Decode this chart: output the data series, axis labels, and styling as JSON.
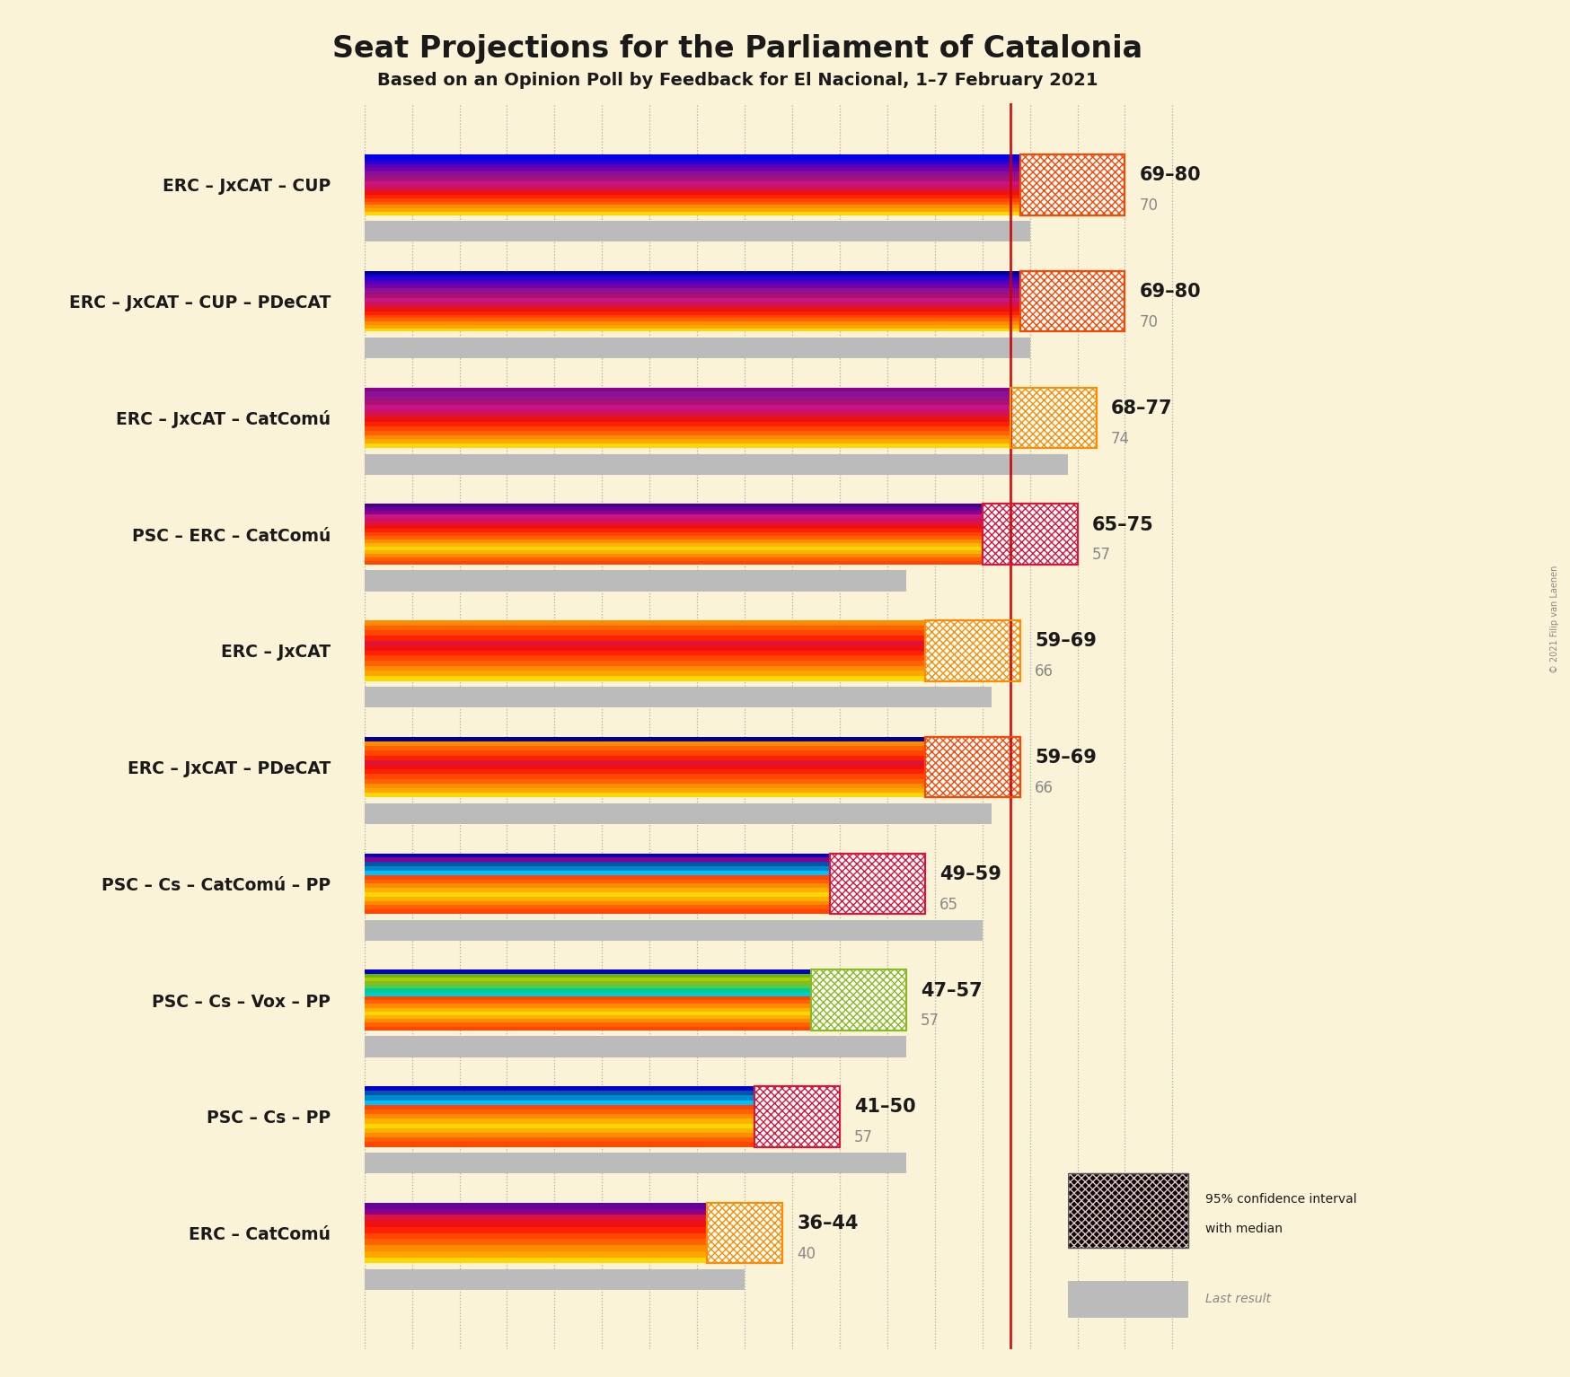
{
  "title": "Seat Projections for the Parliament of Catalonia",
  "subtitle": "Based on an Opinion Poll by Feedback for El Nacional, 1–7 February 2021",
  "copyright": "© 2021 Filip van Laenen",
  "background_color": "#faf3d8",
  "majority_line": 68,
  "coalitions": [
    {
      "label": "ERC – JxCAT – CUP",
      "ci_low": 69,
      "ci_high": 80,
      "median": 70,
      "last_result": 70,
      "stripes": [
        "#FFD700",
        "#FFA500",
        "#FF8C00",
        "#FF6000",
        "#FF4500",
        "#FF2000",
        "#EE1111",
        "#DC143C",
        "#CC1166",
        "#C71585",
        "#AA1177",
        "#991188",
        "#881199",
        "#7700AA",
        "#5500BB",
        "#3300CC",
        "#1100DD",
        "#0000EE"
      ],
      "ci_color": "#FF4500",
      "last_bar_color": "#bbbbbb"
    },
    {
      "label": "ERC – JxCAT – CUP – PDeCAT",
      "ci_low": 69,
      "ci_high": 80,
      "median": 70,
      "last_result": 70,
      "stripes": [
        "#FFD700",
        "#FFA500",
        "#FF8C00",
        "#FF6000",
        "#FF4500",
        "#FF2000",
        "#EE1111",
        "#DC143C",
        "#CC1166",
        "#C71585",
        "#AA1177",
        "#991188",
        "#881199",
        "#7700AA",
        "#5500BB",
        "#3300CC",
        "#1100DD",
        "#00008B"
      ],
      "ci_color": "#FF4500",
      "last_bar_color": "#bbbbbb"
    },
    {
      "label": "ERC – JxCAT – CatComú",
      "ci_low": 68,
      "ci_high": 77,
      "median": 74,
      "last_result": 74,
      "stripes": [
        "#FFD700",
        "#FFA500",
        "#FF8C00",
        "#FF6000",
        "#FF4500",
        "#FF2000",
        "#EE1111",
        "#DC143C",
        "#CC1166",
        "#C71585",
        "#AA1177",
        "#991188",
        "#881199",
        "#8B008B"
      ],
      "ci_color": "#FF8C00",
      "last_bar_color": "#bbbbbb"
    },
    {
      "label": "PSC – ERC – CatComú",
      "ci_low": 65,
      "ci_high": 75,
      "median": 57,
      "last_result": 57,
      "stripes": [
        "#FF4500",
        "#FF6000",
        "#FF8C00",
        "#FFB000",
        "#FFD700",
        "#FFB000",
        "#FF8C00",
        "#FF6000",
        "#FF4500",
        "#FF2000",
        "#EE1111",
        "#DC143C",
        "#CC1166",
        "#C71585",
        "#8B008B",
        "#660099",
        "#440088"
      ],
      "ci_color": "#DC143C",
      "last_bar_color": "#bbbbbb"
    },
    {
      "label": "ERC – JxCAT",
      "ci_low": 59,
      "ci_high": 69,
      "median": 66,
      "last_result": 66,
      "stripes": [
        "#FFD700",
        "#FFA500",
        "#FF8C00",
        "#FF6000",
        "#FF4500",
        "#FF2000",
        "#EE1111",
        "#DC143C",
        "#FF2000",
        "#FF4500",
        "#FF6000",
        "#FF8C00"
      ],
      "ci_color": "#FF8C00",
      "last_bar_color": "#bbbbbb"
    },
    {
      "label": "ERC – JxCAT – PDeCAT",
      "ci_low": 59,
      "ci_high": 69,
      "median": 66,
      "last_result": 66,
      "stripes": [
        "#FFD700",
        "#FFA500",
        "#FF8C00",
        "#FF6000",
        "#FF4500",
        "#FF2000",
        "#EE1111",
        "#DC143C",
        "#FF2000",
        "#FF4500",
        "#FF6000",
        "#FF8C00",
        "#00008B"
      ],
      "ci_color": "#FF4500",
      "last_bar_color": "#bbbbbb"
    },
    {
      "label": "PSC – Cs – CatComú – PP",
      "ci_low": 49,
      "ci_high": 59,
      "median": 65,
      "last_result": 65,
      "stripes": [
        "#FF4500",
        "#FF6000",
        "#FF8C00",
        "#FFB000",
        "#FFD700",
        "#FFB000",
        "#FF8C00",
        "#FF6000",
        "#FF4500",
        "#00BFFF",
        "#0088CC",
        "#0055AA",
        "#8B008B",
        "#0000CD"
      ],
      "ci_color": "#DC143C",
      "last_bar_color": "#bbbbbb"
    },
    {
      "label": "PSC – Cs – Vox – PP",
      "ci_low": 47,
      "ci_high": 57,
      "median": 57,
      "last_result": 57,
      "stripes": [
        "#FF4500",
        "#FF6000",
        "#FF8C00",
        "#FFB000",
        "#FFD700",
        "#FFB000",
        "#FF8C00",
        "#FF6000",
        "#FF4500",
        "#00CED1",
        "#00CC99",
        "#55CC44",
        "#88BB22",
        "#AACC00",
        "#66BB00",
        "#0000CD"
      ],
      "ci_color": "#88BB22",
      "last_bar_color": "#bbbbbb"
    },
    {
      "label": "PSC – Cs – PP",
      "ci_low": 41,
      "ci_high": 50,
      "median": 57,
      "last_result": 57,
      "stripes": [
        "#FF4500",
        "#FF6000",
        "#FF8C00",
        "#FFB000",
        "#FFD700",
        "#FFB000",
        "#FF8C00",
        "#FF6000",
        "#FF4500",
        "#00BFFF",
        "#0088CC",
        "#0055AA",
        "#0000CD"
      ],
      "ci_color": "#DC143C",
      "last_bar_color": "#bbbbbb"
    },
    {
      "label": "ERC – CatComú",
      "ci_low": 36,
      "ci_high": 44,
      "median": 40,
      "last_result": 40,
      "stripes": [
        "#FFD700",
        "#FFA500",
        "#FF8C00",
        "#FF6000",
        "#FF4500",
        "#FF2000",
        "#EE1111",
        "#DC143C",
        "#8B008B",
        "#660099"
      ],
      "ci_color": "#FF8C00",
      "last_bar_color": "#bbbbbb"
    }
  ]
}
